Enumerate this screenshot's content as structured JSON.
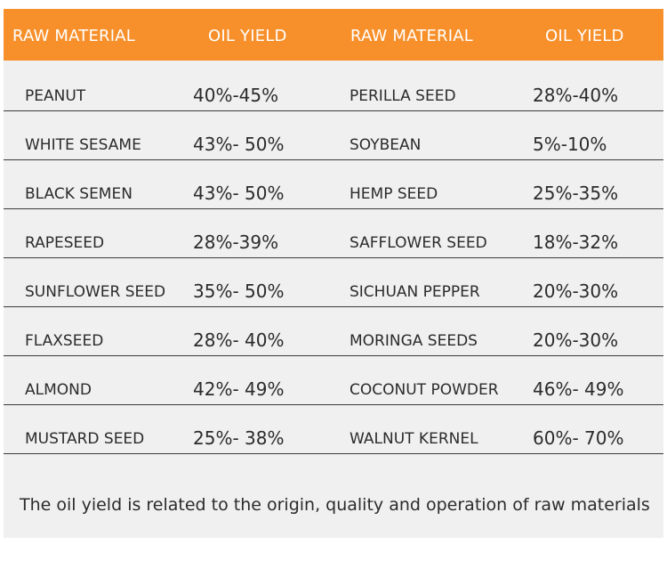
{
  "header": {
    "col1": "RAW MATERIAL",
    "col2": "OIL YIELD",
    "col3": "RAW MATERIAL",
    "col4": "OIL YIELD"
  },
  "rows": [
    {
      "left_name": "PEANUT",
      "left_yield": "40%-45%",
      "right_name": "PERILLA SEED",
      "right_yield": "28%-40%"
    },
    {
      "left_name": "WHITE SESAME",
      "left_yield": "43%- 50%",
      "right_name": "SOYBEAN",
      "right_yield": "5%-10%"
    },
    {
      "left_name": "BLACK SEMEN",
      "left_yield": "43%- 50%",
      "right_name": "HEMP SEED",
      "right_yield": "25%-35%"
    },
    {
      "left_name": "RAPESEED",
      "left_yield": "28%-39%",
      "right_name": "SAFFLOWER SEED",
      "right_yield": "18%-32%"
    },
    {
      "left_name": "SUNFLOWER SEED",
      "left_yield": "35%- 50%",
      "right_name": "SICHUAN PEPPER",
      "right_yield": "20%-30%"
    },
    {
      "left_name": "FLAXSEED",
      "left_yield": "28%- 40%",
      "right_name": "MORINGA SEEDS",
      "right_yield": "20%-30%"
    },
    {
      "left_name": "ALMOND",
      "left_yield": "42%- 49%",
      "right_name": "COCONUT POWDER",
      "right_yield": "46%- 49%"
    },
    {
      "left_name": "MUSTARD SEED",
      "left_yield": "25%- 38%",
      "right_name": "WALNUT KERNEL",
      "right_yield": "60%- 70%"
    }
  ],
  "footnote": "The oil yield is related to the origin, quality and operation of raw materials",
  "colors": {
    "header_bg": "#f7902b",
    "card_bg": "#f0f0f0",
    "text": "#2b2b2b"
  }
}
